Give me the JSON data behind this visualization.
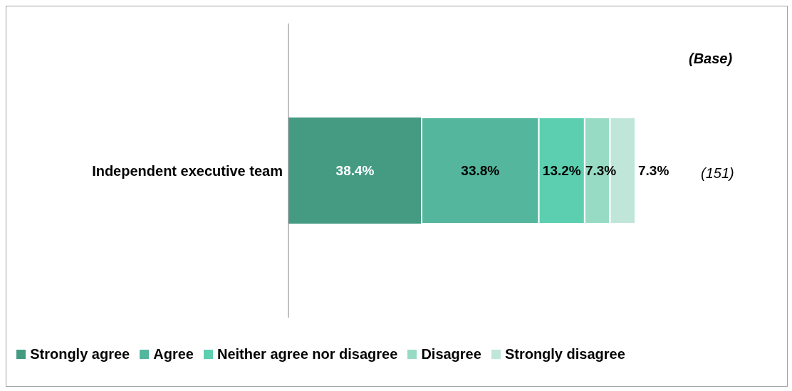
{
  "chart_data": {
    "type": "bar",
    "orientation": "horizontal",
    "stacked": true,
    "categories": [
      "Independent executive team"
    ],
    "series": [
      {
        "name": "Strongly agree",
        "color": "#449b82",
        "values": [
          38.4
        ],
        "value_labels": [
          "38.4%"
        ]
      },
      {
        "name": "Agree",
        "color": "#53b69d",
        "values": [
          33.8
        ],
        "value_labels": [
          "33.8%"
        ]
      },
      {
        "name": "Neither agree nor disagree",
        "color": "#5ccfb1",
        "values": [
          13.2
        ],
        "value_labels": [
          "13.2%"
        ]
      },
      {
        "name": "Disagree",
        "color": "#98dbc4",
        "values": [
          7.3
        ],
        "value_labels": [
          "7.3%"
        ]
      },
      {
        "name": "Strongly disagree",
        "color": "#c0e6d9",
        "values": [
          7.3
        ],
        "value_labels": [
          "7.3%"
        ]
      }
    ],
    "xlim": [
      0,
      100
    ],
    "tick_labels": "y",
    "legend": "bottom",
    "grid": false,
    "annotations": [
      "(Base)",
      "(151)"
    ]
  }
}
